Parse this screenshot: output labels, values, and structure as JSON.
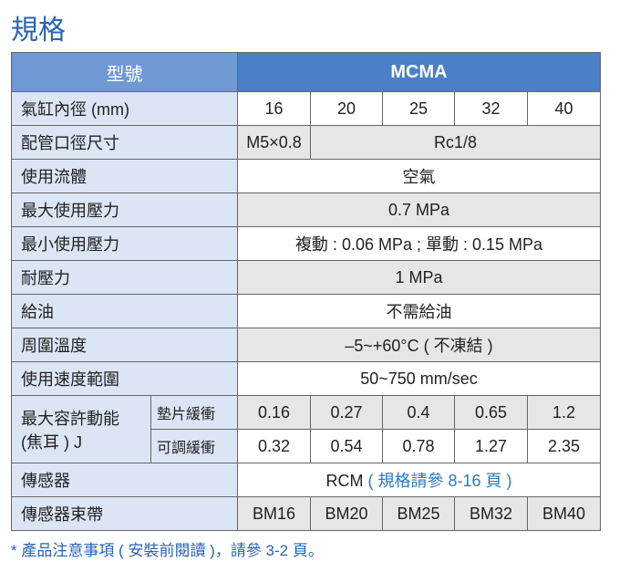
{
  "title": "規格",
  "table": {
    "header": {
      "label": "型號",
      "model": "MCMA"
    },
    "rows": [
      {
        "label": "氣缸內徑 (mm)",
        "values": [
          16,
          20,
          25,
          32,
          40
        ]
      },
      {
        "label": "配管口徑尺寸",
        "values": [
          "M5×0.8",
          "Rc1/8"
        ]
      },
      {
        "label": "使用流體",
        "value": "空氣"
      },
      {
        "label": "最大使用壓力",
        "value": "0.7 MPa"
      },
      {
        "label": "最小使用壓力",
        "value": "複動 : 0.06 MPa ; 單動 : 0.15 MPa"
      },
      {
        "label": "耐壓力",
        "value": "1 MPa"
      },
      {
        "label": "給油",
        "value": "不需給油"
      },
      {
        "label": "周圍溫度",
        "value": "–5~+60°C ( 不凍結 )"
      },
      {
        "label": "使用速度範圍",
        "value": "50~750 mm/sec"
      },
      {
        "label": [
          "最大容許動能",
          "(焦耳 ) J"
        ],
        "sub": [
          {
            "label": "墊片緩衝",
            "values": [
              0.16,
              0.27,
              0.4,
              0.65,
              1.2
            ]
          },
          {
            "label": "可調緩衝",
            "values": [
              0.32,
              0.54,
              0.78,
              1.27,
              2.35
            ]
          }
        ]
      },
      {
        "label": "傳感器",
        "value": "RCM",
        "link": "( 規格請參 8-16 頁 )"
      },
      {
        "label": "傳感器束帶",
        "values": [
          "BM16",
          "BM20",
          "BM25",
          "BM32",
          "BM40"
        ]
      }
    ]
  },
  "note": "* 產品注意事項 ( 安裝前閱讀 )，請參 3-2 頁。"
}
